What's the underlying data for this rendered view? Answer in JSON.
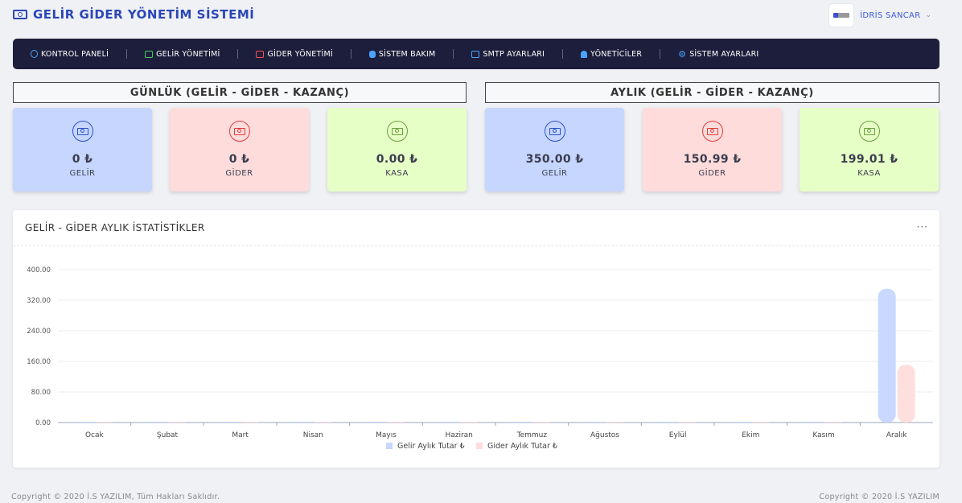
{
  "app": {
    "title": "GELİR GİDER YÖNETİM SİSTEMİ",
    "logo_icon": "money-bill-icon"
  },
  "user": {
    "name": "İDRİS SANCAR",
    "chevron": "⌄"
  },
  "nav": {
    "items": [
      {
        "label": "KONTROL PANELİ",
        "icon": "user-circle-icon"
      },
      {
        "label": "GELİR YÖNETİMİ",
        "icon": "money-green-icon"
      },
      {
        "label": "GİDER YÖNETİMİ",
        "icon": "money-red-icon"
      },
      {
        "label": "SİSTEM BAKIM",
        "icon": "database-icon"
      },
      {
        "label": "SMTP AYARLARI",
        "icon": "mail-box-icon"
      },
      {
        "label": "YÖNETİCİLER",
        "icon": "user-secret-icon"
      },
      {
        "label": "SİSTEM AYARLARI",
        "icon": "gear-icon"
      }
    ]
  },
  "daily": {
    "title": "GÜNLÜK (GELİR - GİDER - KAZANÇ)",
    "income": {
      "value": "0 ₺",
      "label": "GELİR"
    },
    "expense": {
      "value": "0 ₺",
      "label": "GİDER"
    },
    "cash": {
      "value": "0.00 ₺",
      "label": "KASA"
    }
  },
  "monthly": {
    "title": "AYLIK (GELİR - GİDER - KAZANÇ)",
    "income": {
      "value": "350.00 ₺",
      "label": "GELİR"
    },
    "expense": {
      "value": "150.99 ₺",
      "label": "GİDER"
    },
    "cash": {
      "value": "199.01 ₺",
      "label": "KASA"
    }
  },
  "stats_panel": {
    "title": "GELİR - GİDER AYLIK İSTATİSTİKLER",
    "menu": "···"
  },
  "chart_data": {
    "type": "bar",
    "categories": [
      "Ocak",
      "Şubat",
      "Mart",
      "Nisan",
      "Mayıs",
      "Haziran",
      "Temmuz",
      "Ağustos",
      "Eylül",
      "Ekim",
      "Kasım",
      "Aralık"
    ],
    "series": [
      {
        "name": "Gelir Aylık Tutar ₺",
        "color": "#c6d6ff",
        "values": [
          0,
          0,
          0,
          0,
          0,
          0,
          0,
          0,
          0,
          0,
          0,
          350
        ]
      },
      {
        "name": "Gider Aylık Tutar ₺",
        "color": "#ffdcdc",
        "values": [
          0,
          0,
          0,
          0,
          0,
          0,
          0,
          0,
          0,
          0,
          0,
          150.99
        ]
      }
    ],
    "y_ticks": [
      "0.00",
      "80.00",
      "160.00",
      "240.00",
      "320.00",
      "400.00"
    ],
    "ylim": [
      0,
      400
    ],
    "grid": true,
    "legend_position": "bottom"
  },
  "footer": {
    "left": "Copyright © 2020 İ.S YAZILIM, Tüm Hakları Saklıdır.",
    "right": "Copyright © 2020 İ.S YAZILIM"
  }
}
